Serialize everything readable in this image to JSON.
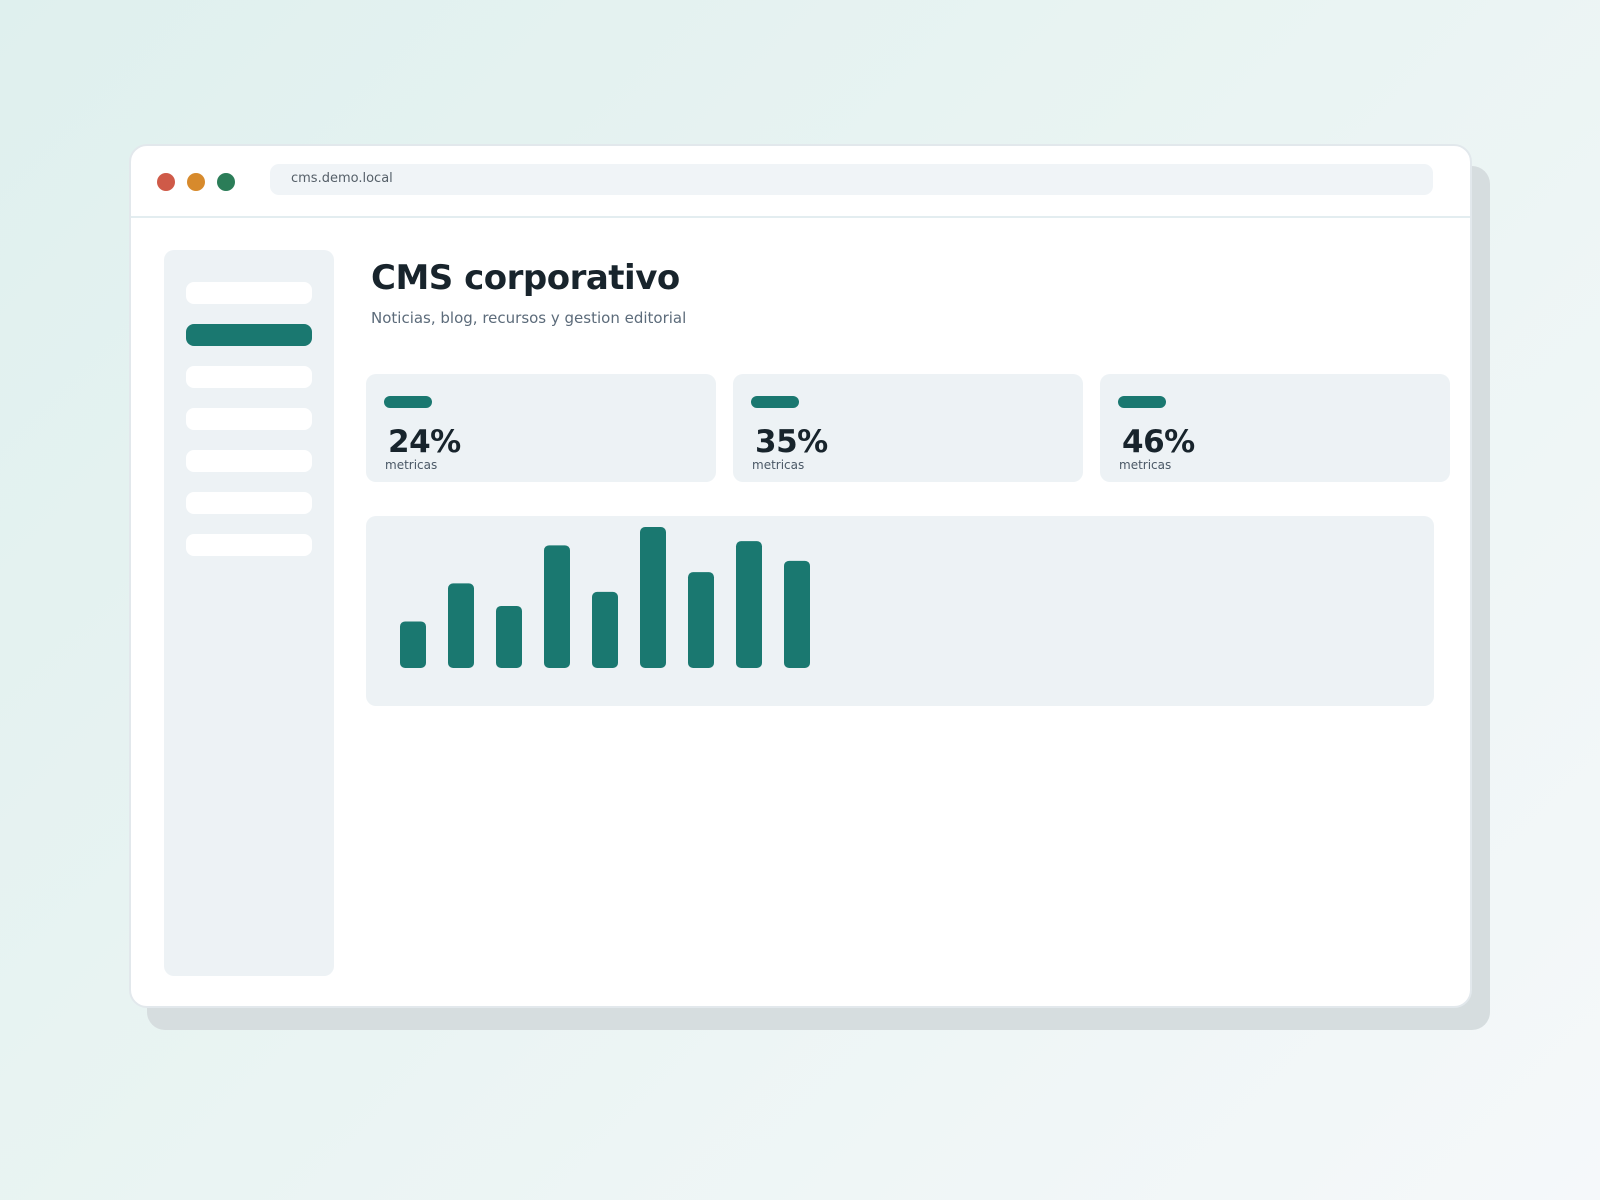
{
  "browser": {
    "url": "cms.demo.local"
  },
  "sidebar": {
    "items": [
      {
        "active": false
      },
      {
        "active": true
      },
      {
        "active": false
      },
      {
        "active": false
      },
      {
        "active": false
      },
      {
        "active": false
      },
      {
        "active": false
      }
    ]
  },
  "header": {
    "title": "CMS corporativo",
    "subtitle": "Noticias, blog, recursos y gestion editorial"
  },
  "cards": [
    {
      "value": "24%",
      "label": "metricas"
    },
    {
      "value": "35%",
      "label": "metricas"
    },
    {
      "value": "46%",
      "label": "metricas"
    }
  ],
  "colors": {
    "accent": "#1a7870",
    "title": "#18242c",
    "panel": "#edf2f5"
  },
  "chart_data": {
    "type": "bar",
    "categories": [
      "",
      "",
      "",
      "",
      "",
      "",
      "",
      "",
      ""
    ],
    "values": [
      33,
      60,
      44,
      87,
      54,
      100,
      68,
      90,
      76
    ],
    "title": "",
    "xlabel": "",
    "ylabel": "",
    "ylim": [
      0,
      100
    ],
    "grid": false
  }
}
